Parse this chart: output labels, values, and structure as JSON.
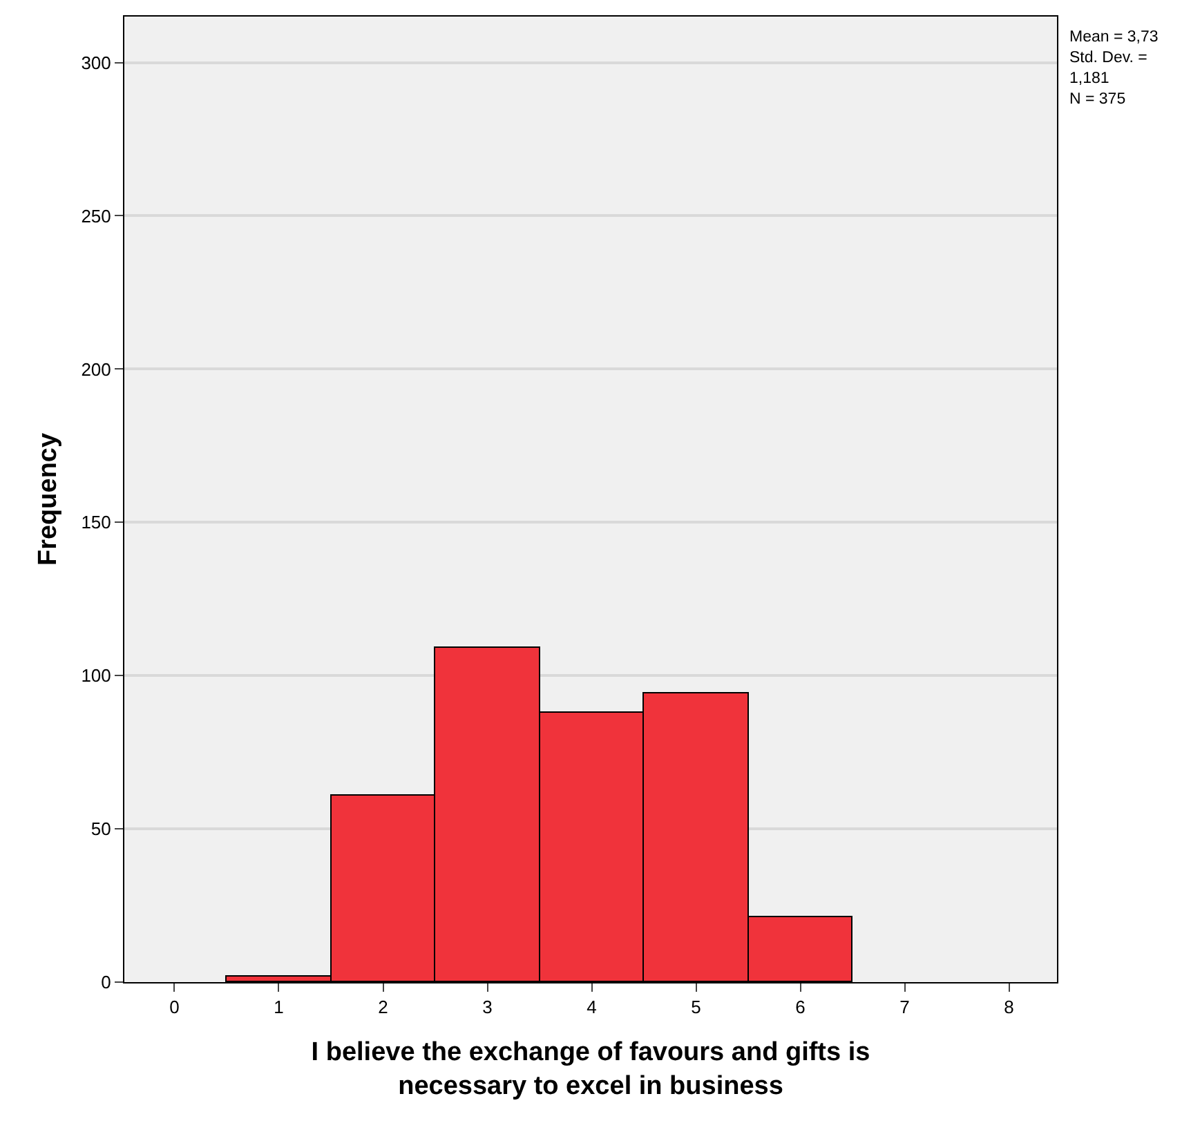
{
  "chart_data": {
    "type": "histogram",
    "xlabel": "I believe the exchange of favours and gifts is\nnecessary to excel in business",
    "ylabel": "Frequency",
    "bins": [
      0.5,
      1.5,
      2.5,
      3.5,
      4.5,
      5.5,
      6.5
    ],
    "values": [
      2,
      61,
      109,
      88,
      94,
      21
    ],
    "color": "#f0333b",
    "xlim": [
      -0.48,
      8.46
    ],
    "xticks": [
      0,
      1,
      2,
      3,
      4,
      5,
      6,
      7,
      8
    ],
    "ylim": [
      0,
      315
    ],
    "yticks": [
      0,
      50,
      100,
      150,
      200,
      250,
      300
    ],
    "grid": "y",
    "annotations": [
      "Mean = 3,73\nStd. Dev. =\n1,181\nN = 375"
    ]
  }
}
